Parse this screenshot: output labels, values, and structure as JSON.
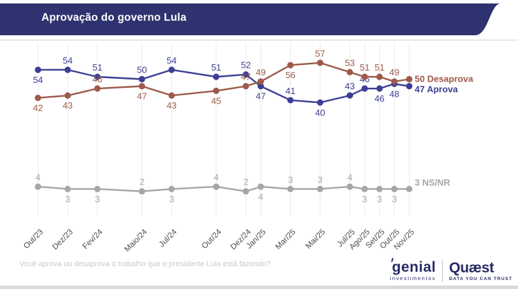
{
  "header": {
    "title": "Aprovação do governo Lula",
    "bg_color": "#2e336f",
    "text_color": "#ffffff"
  },
  "chart_data": {
    "type": "line",
    "title": "Aprovação do governo Lula",
    "categories": [
      "Out/23",
      "Dez/23",
      "Fev/24",
      "Maio/24",
      "Jul/24",
      "Out/24",
      "Dez/24",
      "Jan/25",
      "Mar/25",
      "Mai/25",
      "Jul/25",
      "Ago/25",
      "Set/25",
      "Out/25",
      "Nov/25"
    ],
    "month_offsets": [
      0,
      2,
      4,
      7,
      9,
      12,
      14,
      15,
      17,
      19,
      21,
      22,
      23,
      24,
      25
    ],
    "series": [
      {
        "name": "NS/NR",
        "color": "#a6a6a6",
        "values": [
          4,
          3,
          3,
          2,
          3,
          4,
          2,
          4,
          3,
          3,
          4,
          3,
          3,
          3,
          3
        ],
        "label_side": [
          "above",
          "below",
          "below",
          "above",
          "below",
          "above",
          "above",
          "below",
          "above",
          "above",
          "above",
          "below",
          "below",
          "below",
          "above"
        ],
        "end_label": "3 NS/NR",
        "end_dy": -5
      },
      {
        "name": "Aprova",
        "color": "#3d3f94",
        "values": [
          54,
          54,
          51,
          50,
          54,
          51,
          52,
          47,
          41,
          40,
          43,
          46,
          46,
          48,
          47
        ],
        "label_side": [
          "below",
          "above",
          "above",
          "above",
          "above",
          "above",
          "above",
          "below",
          "above",
          "below",
          "above",
          "above",
          "below",
          "below",
          "below"
        ],
        "end_label": "47 Aprova",
        "end_dy": 9
      },
      {
        "name": "Desaprova",
        "color": "#9c5a4a",
        "values": [
          42,
          43,
          46,
          47,
          43,
          45,
          47,
          49,
          56,
          57,
          53,
          51,
          51,
          49,
          50
        ],
        "label_side": [
          "below",
          "below",
          "above",
          "below",
          "below",
          "below",
          "above",
          "above",
          "below",
          "above",
          "above",
          "above",
          "above",
          "above",
          "above"
        ],
        "end_label": "50 Desaprova",
        "end_dy": 4
      }
    ],
    "ylim": [
      0,
      60
    ],
    "grid": "vertical-ticks-per-point",
    "legend_position": "right-end-of-lines",
    "grid_color": "#ececec",
    "xlabel_color": "#4d4d4d"
  },
  "footer": {
    "question": "Você aprova ou desaprova o trabalho que o presidente Lula está fazendo?"
  },
  "logos": {
    "genial_name": "genial",
    "genial_tagline": "investimentos",
    "quaest_name": "Quæst",
    "quaest_tagline": "DATA YOU CAN TRUST",
    "color": "#252a63"
  }
}
